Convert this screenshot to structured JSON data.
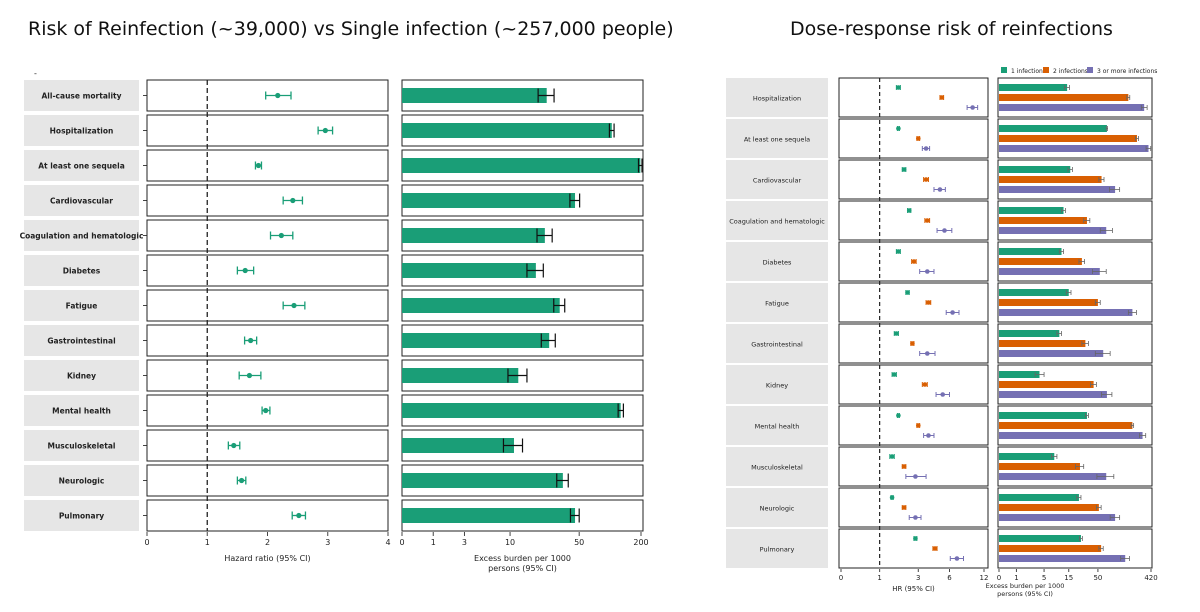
{
  "titles": {
    "left": "Risk of Reinfection (~39,000) vs Single infection (~257,000 people)",
    "right": "Dose-response risk of reinfections"
  },
  "chart_data": [
    {
      "type": "forest",
      "categories": [
        "All-cause mortality",
        "Hospitalization",
        "At least one sequela",
        "Cardiovascular",
        "Coagulation and hematologic",
        "Diabetes",
        "Fatigue",
        "Gastrointestinal",
        "Kidney",
        "Mental health",
        "Musculoskeletal",
        "Neurologic",
        "Pulmonary"
      ],
      "hr": [
        {
          "est": 2.17,
          "lo": 1.97,
          "hi": 2.39
        },
        {
          "est": 2.96,
          "lo": 2.84,
          "hi": 3.08
        },
        {
          "est": 1.85,
          "lo": 1.8,
          "hi": 1.9
        },
        {
          "est": 2.42,
          "lo": 2.26,
          "hi": 2.58
        },
        {
          "est": 2.23,
          "lo": 2.05,
          "hi": 2.42
        },
        {
          "est": 1.63,
          "lo": 1.5,
          "hi": 1.77
        },
        {
          "est": 2.44,
          "lo": 2.26,
          "hi": 2.62
        },
        {
          "est": 1.72,
          "lo": 1.62,
          "hi": 1.82
        },
        {
          "est": 1.7,
          "lo": 1.53,
          "hi": 1.89
        },
        {
          "est": 1.97,
          "lo": 1.91,
          "hi": 2.04
        },
        {
          "est": 1.44,
          "lo": 1.35,
          "hi": 1.54
        },
        {
          "est": 1.57,
          "lo": 1.5,
          "hi": 1.64
        },
        {
          "est": 2.52,
          "lo": 2.41,
          "hi": 2.63
        }
      ],
      "xlabel": "Hazard ratio (95% CI)",
      "xticks": [
        "0",
        "1",
        "2",
        "3",
        "4"
      ],
      "xlim": [
        0,
        4
      ],
      "reference_line": 1
    },
    {
      "type": "bar",
      "categories": [
        "All-cause mortality",
        "Hospitalization",
        "At least one sequela",
        "Cardiovascular",
        "Coagulation and hematologic",
        "Diabetes",
        "Fatigue",
        "Gastrointestinal",
        "Kidney",
        "Mental health",
        "Musculoskeletal",
        "Neurologic",
        "Pulmonary"
      ],
      "values": [
        23.8,
        104.1,
        197.1,
        45.5,
        22.8,
        18.5,
        32.1,
        25.2,
        12.2,
        127.0,
        11.0,
        34.5,
        45.5
      ],
      "ci": [
        [
          19.5,
          28.2
        ],
        [
          98.7,
          109.6
        ],
        [
          189.1,
          205.0
        ],
        [
          40.5,
          50.5
        ],
        [
          19.0,
          27.0
        ],
        [
          15.0,
          22.0
        ],
        [
          28.0,
          36.0
        ],
        [
          21.0,
          29.0
        ],
        [
          9.5,
          15.0
        ],
        [
          120.0,
          135.0
        ],
        [
          8.5,
          13.5
        ],
        [
          30.0,
          39.0
        ],
        [
          41.0,
          50.0
        ]
      ],
      "xlabel": "Excess burden per 1000 persons (95% CI)",
      "xticks": [
        "0",
        "1",
        "3",
        "10",
        "50",
        "200"
      ],
      "xscale": "log1p",
      "xlim": [
        0,
        200
      ],
      "color": "#1a9e77"
    },
    {
      "type": "forest",
      "categories": [
        "Hospitalization",
        "At least one sequela",
        "Cardiovascular",
        "Coagulation and hematologic",
        "Diabetes",
        "Fatigue",
        "Gastrointestinal",
        "Kidney",
        "Mental health",
        "Musculoskeletal",
        "Neurologic",
        "Pulmonary"
      ],
      "series": [
        {
          "name": "1 infection",
          "color": "#1a9e77",
          "points": [
            {
              "est": 1.8,
              "lo": 1.7,
              "hi": 1.9
            },
            {
              "est": 1.8,
              "lo": 1.75,
              "hi": 1.85
            },
            {
              "est": 2.1,
              "lo": 2.0,
              "hi": 2.2
            },
            {
              "est": 2.4,
              "lo": 2.3,
              "hi": 2.5
            },
            {
              "est": 1.8,
              "lo": 1.7,
              "hi": 1.9
            },
            {
              "est": 2.3,
              "lo": 2.2,
              "hi": 2.4
            },
            {
              "est": 1.7,
              "lo": 1.6,
              "hi": 1.8
            },
            {
              "est": 1.6,
              "lo": 1.5,
              "hi": 1.7
            },
            {
              "est": 1.8,
              "lo": 1.75,
              "hi": 1.85
            },
            {
              "est": 1.5,
              "lo": 1.4,
              "hi": 1.6
            },
            {
              "est": 1.5,
              "lo": 1.45,
              "hi": 1.55
            },
            {
              "est": 2.8,
              "lo": 2.7,
              "hi": 2.9
            }
          ]
        },
        {
          "name": "2 infections",
          "color": "#d95f02",
          "points": [
            {
              "est": 5.1,
              "lo": 4.9,
              "hi": 5.3
            },
            {
              "est": 3.0,
              "lo": 2.9,
              "hi": 3.1
            },
            {
              "est": 3.6,
              "lo": 3.4,
              "hi": 3.8
            },
            {
              "est": 3.7,
              "lo": 3.5,
              "hi": 3.9
            },
            {
              "est": 2.7,
              "lo": 2.55,
              "hi": 2.85
            },
            {
              "est": 3.8,
              "lo": 3.6,
              "hi": 4.0
            },
            {
              "est": 2.6,
              "lo": 2.5,
              "hi": 2.7
            },
            {
              "est": 3.5,
              "lo": 3.3,
              "hi": 3.7
            },
            {
              "est": 3.0,
              "lo": 2.9,
              "hi": 3.1
            },
            {
              "est": 2.1,
              "lo": 2.0,
              "hi": 2.2
            },
            {
              "est": 2.1,
              "lo": 2.0,
              "hi": 2.2
            },
            {
              "est": 4.4,
              "lo": 4.2,
              "hi": 4.6
            }
          ]
        },
        {
          "name": "3 or more infections",
          "color": "#7570b3",
          "points": [
            {
              "est": 9.6,
              "lo": 8.6,
              "hi": 10.6
            },
            {
              "est": 3.6,
              "lo": 3.3,
              "hi": 3.9
            },
            {
              "est": 4.9,
              "lo": 4.3,
              "hi": 5.5
            },
            {
              "est": 5.4,
              "lo": 4.6,
              "hi": 6.3
            },
            {
              "est": 3.7,
              "lo": 3.1,
              "hi": 4.3
            },
            {
              "est": 6.4,
              "lo": 5.6,
              "hi": 7.3
            },
            {
              "est": 3.7,
              "lo": 3.1,
              "hi": 4.4
            },
            {
              "est": 5.2,
              "lo": 4.5,
              "hi": 6.0
            },
            {
              "est": 3.8,
              "lo": 3.4,
              "hi": 4.3
            },
            {
              "est": 2.8,
              "lo": 2.2,
              "hi": 3.6
            },
            {
              "est": 2.8,
              "lo": 2.4,
              "hi": 3.2
            },
            {
              "est": 7.0,
              "lo": 6.1,
              "hi": 8.0
            }
          ]
        }
      ],
      "legend_placement": "top",
      "xlabel": "HR (95% CI)",
      "xticks": [
        "0",
        "1",
        "3",
        "6",
        "12"
      ],
      "xscale": "log1p",
      "xlim": [
        0,
        12
      ],
      "reference_line": 1
    },
    {
      "type": "bar",
      "categories": [
        "Hospitalization",
        "At least one sequela",
        "Cardiovascular",
        "Coagulation and hematologic",
        "Diabetes",
        "Fatigue",
        "Gastrointestinal",
        "Kidney",
        "Mental health",
        "Musculoskeletal",
        "Neurologic",
        "Pulmonary"
      ],
      "series": [
        {
          "name": "1 infection",
          "color": "#1a9e77",
          "values": [
            14,
            72,
            16,
            12,
            11,
            15,
            10,
            4,
            32,
            8,
            23,
            25
          ],
          "ci": [
            [
              12.5,
              15.5
            ],
            [
              70,
              74
            ],
            [
              14.5,
              17.5
            ],
            [
              11,
              13
            ],
            [
              10,
              12
            ],
            [
              13.5,
              16.5
            ],
            [
              9,
              11
            ],
            [
              3.2,
              5
            ],
            [
              30,
              34
            ],
            [
              7,
              9
            ],
            [
              21,
              25
            ],
            [
              23.5,
              26.5
            ]
          ]
        },
        {
          "name": "2 infections",
          "color": "#d95f02",
          "values": [
            170,
            240,
            58,
            32,
            26,
            50,
            30,
            42,
            200,
            24,
            52,
            57
          ],
          "ci": [
            [
              160,
              180
            ],
            [
              225,
              255
            ],
            [
              52,
              64
            ],
            [
              28,
              36
            ],
            [
              23,
              29
            ],
            [
              45,
              55
            ],
            [
              26,
              34
            ],
            [
              37,
              47
            ],
            [
              190,
              210
            ],
            [
              20,
              28
            ],
            [
              47,
              57
            ],
            [
              52,
              62
            ]
          ]
        },
        {
          "name": "3 or more infections",
          "color": "#7570b3",
          "values": [
            320,
            380,
            100,
            70,
            54,
            200,
            62,
            72,
            300,
            70,
            100,
            150
          ],
          "ci": [
            [
              285,
              360
            ],
            [
              345,
              415
            ],
            [
              80,
              120
            ],
            [
              55,
              90
            ],
            [
              40,
              70
            ],
            [
              170,
              235
            ],
            [
              45,
              82
            ],
            [
              58,
              88
            ],
            [
              265,
              340
            ],
            [
              48,
              95
            ],
            [
              82,
              120
            ],
            [
              125,
              178
            ]
          ]
        }
      ],
      "legend_placement": "top",
      "xlabel": "Excess burden per 1000 persons (95% CI)",
      "xticks": [
        "0",
        "1",
        "5",
        "15",
        "50",
        "420"
      ],
      "xscale": "log1p",
      "xlim": [
        0,
        420
      ]
    }
  ]
}
